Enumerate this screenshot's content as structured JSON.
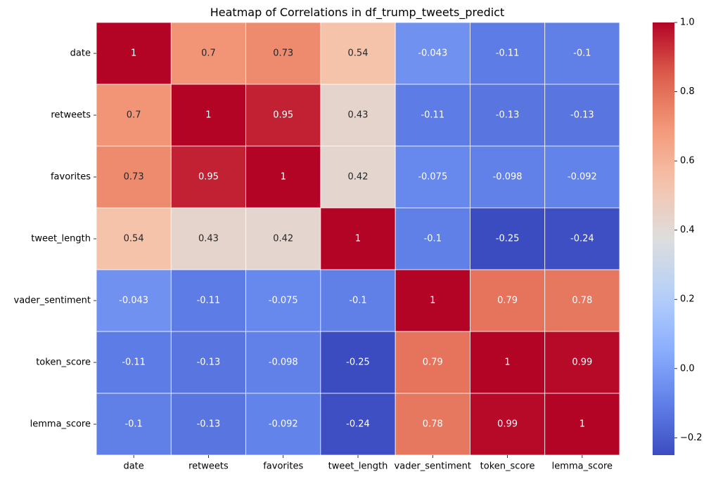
{
  "chart_data": {
    "type": "heatmap",
    "title": "Heatmap of Correlations in df_trump_tweets_predict",
    "xlabel": "",
    "ylabel": "",
    "rows": [
      "date",
      "retweets",
      "favorites",
      "tweet_length",
      "vader_sentiment",
      "token_score",
      "lemma_score"
    ],
    "columns": [
      "date",
      "retweets",
      "favorites",
      "tweet_length",
      "vader_sentiment",
      "token_score",
      "lemma_score"
    ],
    "values": [
      [
        1,
        0.7,
        0.73,
        0.54,
        -0.043,
        -0.11,
        -0.1
      ],
      [
        0.7,
        1,
        0.95,
        0.43,
        -0.11,
        -0.13,
        -0.13
      ],
      [
        0.73,
        0.95,
        1,
        0.42,
        -0.075,
        -0.098,
        -0.092
      ],
      [
        0.54,
        0.43,
        0.42,
        1,
        -0.1,
        -0.25,
        -0.24
      ],
      [
        -0.043,
        -0.11,
        -0.075,
        -0.1,
        1,
        0.79,
        0.78
      ],
      [
        -0.11,
        -0.13,
        -0.098,
        -0.25,
        0.79,
        1,
        0.99
      ],
      [
        -0.1,
        -0.13,
        -0.092,
        -0.24,
        0.78,
        0.99,
        1
      ]
    ],
    "annotations": [
      [
        "1",
        "0.7",
        "0.73",
        "0.54",
        "-0.043",
        "-0.11",
        "-0.1"
      ],
      [
        "0.7",
        "1",
        "0.95",
        "0.43",
        "-0.11",
        "-0.13",
        "-0.13"
      ],
      [
        "0.73",
        "0.95",
        "1",
        "0.42",
        "-0.075",
        "-0.098",
        "-0.092"
      ],
      [
        "0.54",
        "0.43",
        "0.42",
        "1",
        "-0.1",
        "-0.25",
        "-0.24"
      ],
      [
        "-0.043",
        "-0.11",
        "-0.075",
        "-0.1",
        "1",
        "0.79",
        "0.78"
      ],
      [
        "-0.11",
        "-0.13",
        "-0.098",
        "-0.25",
        "0.79",
        "1",
        "0.99"
      ],
      [
        "-0.1",
        "-0.13",
        "-0.092",
        "-0.24",
        "0.78",
        "0.99",
        "1"
      ]
    ],
    "colorbar": {
      "colormap": "coolwarm",
      "vmin": -0.25,
      "vmax": 1.0,
      "ticks": [
        -0.2,
        0.0,
        0.2,
        0.4,
        0.6,
        0.8,
        1.0
      ],
      "tick_labels": [
        "−0.2",
        "0.0",
        "0.2",
        "0.4",
        "0.6",
        "0.8",
        "1.0"
      ],
      "position": "right"
    }
  }
}
